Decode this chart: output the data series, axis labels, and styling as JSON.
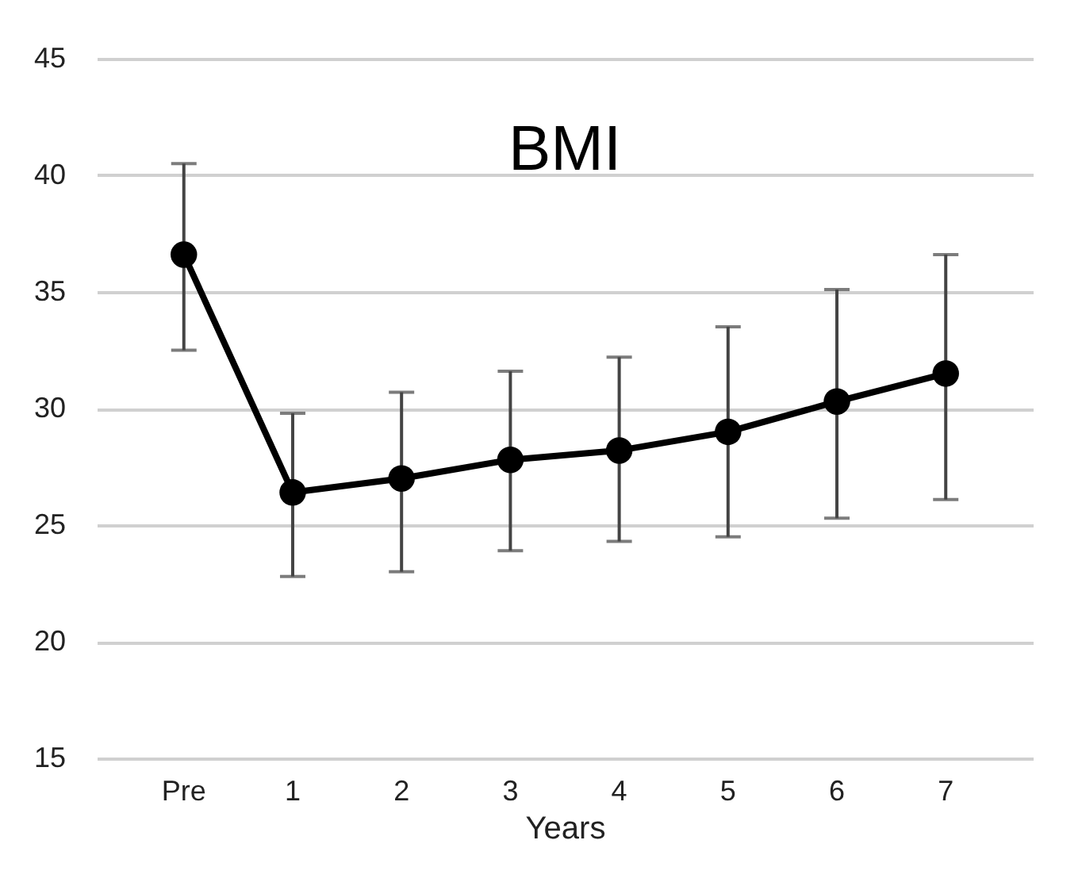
{
  "chart_data": {
    "type": "line",
    "title": "BMI",
    "xlabel": "Years",
    "categories": [
      "Pre",
      "1",
      "2",
      "3",
      "4",
      "5",
      "6",
      "7"
    ],
    "series": [
      {
        "color": "#000000",
        "values": [
          36.6,
          26.4,
          27.0,
          27.8,
          28.2,
          29.0,
          30.3,
          31.5
        ],
        "errors": [
          [
            32.5,
            40.5
          ],
          [
            22.8,
            29.8
          ],
          [
            23.0,
            30.7
          ],
          [
            23.9,
            31.6
          ],
          [
            24.3,
            32.2
          ],
          [
            24.5,
            33.5
          ],
          [
            25.3,
            35.1
          ],
          [
            26.1,
            36.6
          ]
        ]
      }
    ],
    "ylim": [
      15,
      45
    ],
    "yticks": [
      15,
      20,
      25,
      30,
      35,
      40,
      45
    ],
    "grid": "y",
    "marker": "circle",
    "line_style": "solid"
  }
}
